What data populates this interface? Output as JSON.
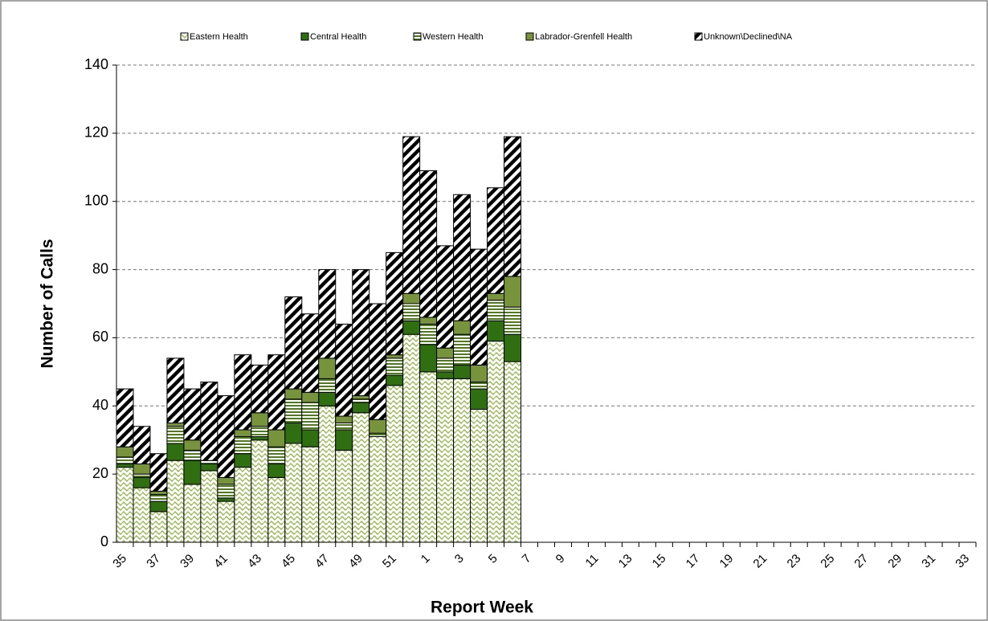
{
  "chart_data": {
    "type": "stacked-bar",
    "y_label": "Number of Calls",
    "x_label": "Report Week",
    "categories": [
      "35",
      null,
      "37",
      null,
      "39",
      null,
      "41",
      null,
      "43",
      null,
      "45",
      null,
      "47",
      null,
      "49",
      null,
      "51",
      null,
      "1",
      null,
      "3",
      null,
      "5",
      null,
      "7",
      null,
      "9",
      null,
      "11",
      null,
      "13",
      null,
      "15",
      null,
      "17",
      null,
      "19",
      null,
      "21",
      null,
      "23",
      null,
      "25",
      null,
      "27",
      null,
      "29",
      null,
      "31",
      null,
      "33"
    ],
    "series": [
      {
        "name": "Eastern Health",
        "color": "#9bbb59",
        "pattern": "zigzag",
        "values": [
          22,
          16,
          9,
          24,
          17,
          21,
          12,
          22,
          30,
          19,
          29,
          28,
          40,
          27,
          38,
          31,
          46,
          61,
          50,
          48,
          48,
          39,
          59,
          53,
          null,
          null,
          null,
          null,
          null,
          null,
          null,
          null,
          null,
          null,
          null,
          null,
          null,
          null,
          null,
          null,
          null,
          null,
          null,
          null,
          null,
          null,
          null,
          null,
          null,
          null,
          null
        ]
      },
      {
        "name": "Central Health",
        "color": "#2f6f12",
        "pattern": "solid",
        "values": [
          1,
          3,
          3,
          5,
          7,
          2,
          1,
          4,
          1,
          4,
          6,
          5,
          4,
          6,
          3,
          0,
          3,
          4,
          8,
          2,
          4,
          6,
          6,
          8,
          null,
          null,
          null,
          null,
          null,
          null,
          null,
          null,
          null,
          null,
          null,
          null,
          null,
          null,
          null,
          null,
          null,
          null,
          null,
          null,
          null,
          null,
          null,
          null,
          null,
          null,
          null
        ]
      },
      {
        "name": "Western Health",
        "color": "#4f7a1e",
        "pattern": "hstripe",
        "values": [
          2,
          1,
          2,
          5,
          3,
          1,
          4,
          5,
          3,
          5,
          7,
          8,
          4,
          2,
          1,
          1,
          5,
          5,
          6,
          4,
          9,
          2,
          6,
          8,
          null,
          null,
          null,
          null,
          null,
          null,
          null,
          null,
          null,
          null,
          null,
          null,
          null,
          null,
          null,
          null,
          null,
          null,
          null,
          null,
          null,
          null,
          null,
          null,
          null,
          null,
          null
        ]
      },
      {
        "name": "Labrador-Grenfell Health",
        "color": "#77933c",
        "pattern": "solid",
        "values": [
          3,
          3,
          1,
          1,
          3,
          0,
          2,
          2,
          4,
          5,
          3,
          3,
          6,
          2,
          1,
          4,
          1,
          3,
          2,
          3,
          4,
          5,
          2,
          9,
          null,
          null,
          null,
          null,
          null,
          null,
          null,
          null,
          null,
          null,
          null,
          null,
          null,
          null,
          null,
          null,
          null,
          null,
          null,
          null,
          null,
          null,
          null,
          null,
          null,
          null,
          null
        ]
      },
      {
        "name": "Unknown\\Declined\\NA",
        "color": "#000000",
        "pattern": "diagonal",
        "values": [
          17,
          11,
          11,
          19,
          15,
          23,
          24,
          22,
          14,
          22,
          27,
          23,
          26,
          27,
          37,
          34,
          30,
          46,
          43,
          30,
          37,
          34,
          31,
          41,
          null,
          null,
          null,
          null,
          null,
          null,
          null,
          null,
          null,
          null,
          null,
          null,
          null,
          null,
          null,
          null,
          null,
          null,
          null,
          null,
          null,
          null,
          null,
          null,
          null,
          null,
          null
        ]
      }
    ],
    "ylim": [
      0,
      140
    ],
    "yticks": [
      0,
      20,
      40,
      60,
      80,
      100,
      120,
      140
    ],
    "grid": true
  }
}
